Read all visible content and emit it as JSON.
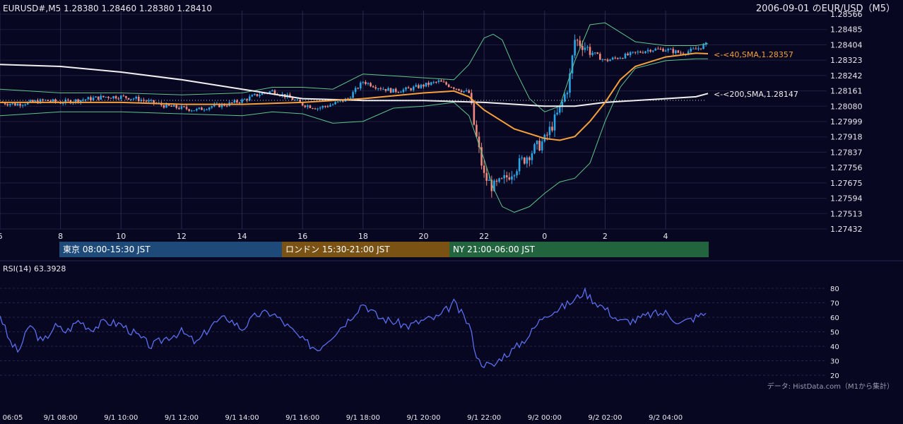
{
  "header": {
    "symbol_info": "EURUSD#,M5 1.28380 1.28460 1.28380 1.28410",
    "title_right": "2006-09-01 のEUR/USD（M5）"
  },
  "colors": {
    "background": "#070721",
    "grid": "#2a2a4a",
    "candle_up": "#2aa5e6",
    "candle_down": "#f08a7e",
    "sma40": "#f5a03c",
    "sma200": "#f0f0f0",
    "bollinger": "#5fc48a",
    "rsi": "#5a6ef0",
    "session_tokyo": "#1e4a7a",
    "session_london": "#7a5214",
    "session_ny": "#22643e"
  },
  "price_axis": {
    "ticks": [
      "1.28566",
      "1.28485",
      "1.28404",
      "1.28323",
      "1.28242",
      "1.28161",
      "1.28080",
      "1.27999",
      "1.27918",
      "1.27837",
      "1.27756",
      "1.27675",
      "1.27594",
      "1.27513",
      "1.27432"
    ]
  },
  "hour_axis": {
    "ticks": [
      "6",
      "8",
      "10",
      "12",
      "14",
      "16",
      "18",
      "20",
      "22",
      "0",
      "2",
      "4"
    ]
  },
  "indicator_labels": {
    "sma40": "<-<40,SMA,1.28357",
    "sma200": "<-<200,SMA,1.28147"
  },
  "sessions": [
    {
      "label": "東京 08:00-15:30 JST"
    },
    {
      "label": "ロンドン 15:30-21:00 JST"
    },
    {
      "label": "NY 21:00-06:00 JST"
    }
  ],
  "rsi_panel": {
    "label": "RSI(14) 63.3928",
    "ticks": [
      "80",
      "70",
      "60",
      "50",
      "40",
      "30",
      "20"
    ],
    "source_note": "データ: HistData.com（M1から集計）"
  },
  "time_axis": {
    "ticks": [
      "06:05",
      "9/1 08:00",
      "9/1 10:00",
      "9/1 12:00",
      "9/1 14:00",
      "9/1 16:00",
      "9/1 18:00",
      "9/1 20:00",
      "9/1 22:00",
      "9/2 00:00",
      "9/2 02:00",
      "9/2 04:00"
    ]
  },
  "chart_data": [
    {
      "type": "candlestick",
      "title": "EUR/USD M5",
      "ylim": [
        1.27432,
        1.28566
      ],
      "hours": [
        6,
        8,
        10,
        12,
        14,
        16,
        18,
        20,
        22,
        0,
        2,
        4
      ],
      "close_path": [
        [
          6.0,
          1.281
        ],
        [
          6.5,
          1.2809
        ],
        [
          7.0,
          1.281
        ],
        [
          7.5,
          1.2811
        ],
        [
          8.0,
          1.281
        ],
        [
          8.5,
          1.2811
        ],
        [
          9.0,
          1.2812
        ],
        [
          9.5,
          1.2813
        ],
        [
          10.0,
          1.2813
        ],
        [
          10.5,
          1.2812
        ],
        [
          11.0,
          1.281
        ],
        [
          11.5,
          1.2808
        ],
        [
          12.0,
          1.2807
        ],
        [
          12.5,
          1.2806
        ],
        [
          13.0,
          1.2808
        ],
        [
          13.5,
          1.2809
        ],
        [
          14.0,
          1.2811
        ],
        [
          14.5,
          1.2814
        ],
        [
          15.0,
          1.2816
        ],
        [
          15.5,
          1.2813
        ],
        [
          16.0,
          1.2809
        ],
        [
          16.5,
          1.2807
        ],
        [
          17.0,
          1.2809
        ],
        [
          17.5,
          1.2812
        ],
        [
          18.0,
          1.2821
        ],
        [
          18.5,
          1.2818
        ],
        [
          19.0,
          1.2816
        ],
        [
          19.5,
          1.2817
        ],
        [
          20.0,
          1.2819
        ],
        [
          20.5,
          1.2821
        ],
        [
          21.0,
          1.2818
        ],
        [
          21.5,
          1.2815
        ],
        [
          21.7,
          1.2795
        ],
        [
          22.0,
          1.2771
        ],
        [
          22.3,
          1.2765
        ],
        [
          22.6,
          1.2768
        ],
        [
          23.0,
          1.2775
        ],
        [
          23.5,
          1.2783
        ],
        [
          24.0,
          1.279
        ],
        [
          24.5,
          1.2806
        ],
        [
          24.8,
          1.282
        ],
        [
          25.0,
          1.2843
        ],
        [
          25.3,
          1.284
        ],
        [
          25.6,
          1.2836
        ],
        [
          26.0,
          1.2832
        ],
        [
          26.5,
          1.2834
        ],
        [
          27.0,
          1.2836
        ],
        [
          27.5,
          1.2838
        ],
        [
          28.0,
          1.2838
        ],
        [
          28.5,
          1.2836
        ],
        [
          29.0,
          1.2838
        ],
        [
          29.4,
          1.2841
        ]
      ],
      "sma40_path": [
        [
          6.0,
          1.281
        ],
        [
          8.0,
          1.281
        ],
        [
          10.0,
          1.281
        ],
        [
          12.0,
          1.2809
        ],
        [
          14.0,
          1.2809
        ],
        [
          16.0,
          1.281
        ],
        [
          18.0,
          1.2812
        ],
        [
          20.0,
          1.2815
        ],
        [
          21.0,
          1.2816
        ],
        [
          21.5,
          1.2813
        ],
        [
          22.0,
          1.2806
        ],
        [
          23.0,
          1.2796
        ],
        [
          24.0,
          1.2791
        ],
        [
          24.5,
          1.279
        ],
        [
          25.0,
          1.2792
        ],
        [
          25.5,
          1.28
        ],
        [
          26.0,
          1.281
        ],
        [
          26.5,
          1.2822
        ],
        [
          27.0,
          1.2829
        ],
        [
          28.0,
          1.2834
        ],
        [
          29.0,
          1.2836
        ],
        [
          29.4,
          1.28357
        ]
      ],
      "sma200_path": [
        [
          6.0,
          1.283
        ],
        [
          8.0,
          1.2829
        ],
        [
          10.0,
          1.2826
        ],
        [
          12.0,
          1.2822
        ],
        [
          14.0,
          1.2817
        ],
        [
          16.0,
          1.2812
        ],
        [
          18.0,
          1.2811
        ],
        [
          20.0,
          1.2811
        ],
        [
          22.0,
          1.281
        ],
        [
          24.0,
          1.2808
        ],
        [
          25.0,
          1.2808
        ],
        [
          26.0,
          1.281
        ],
        [
          27.0,
          1.2811
        ],
        [
          28.0,
          1.2812
        ],
        [
          29.0,
          1.2813
        ],
        [
          29.4,
          1.28147
        ]
      ],
      "bb_upper_path": [
        [
          6.0,
          1.2817
        ],
        [
          8.0,
          1.2815
        ],
        [
          10.0,
          1.2815
        ],
        [
          12.0,
          1.2814
        ],
        [
          14.0,
          1.2815
        ],
        [
          15.0,
          1.2818
        ],
        [
          16.0,
          1.2818
        ],
        [
          17.0,
          1.2817
        ],
        [
          18.0,
          1.2825
        ],
        [
          19.0,
          1.2824
        ],
        [
          20.0,
          1.2823
        ],
        [
          21.0,
          1.2822
        ],
        [
          21.5,
          1.283
        ],
        [
          22.0,
          1.2844
        ],
        [
          22.3,
          1.2846
        ],
        [
          22.6,
          1.2843
        ],
        [
          23.0,
          1.2828
        ],
        [
          23.5,
          1.2812
        ],
        [
          24.0,
          1.2805
        ],
        [
          24.5,
          1.2808
        ],
        [
          25.0,
          1.2832
        ],
        [
          25.5,
          1.2851
        ],
        [
          26.0,
          1.2852
        ],
        [
          26.5,
          1.2847
        ],
        [
          27.0,
          1.2842
        ],
        [
          28.0,
          1.284
        ],
        [
          29.0,
          1.284
        ],
        [
          29.4,
          1.2841
        ]
      ],
      "bb_lower_path": [
        [
          6.0,
          1.2803
        ],
        [
          8.0,
          1.2805
        ],
        [
          10.0,
          1.2805
        ],
        [
          12.0,
          1.2804
        ],
        [
          14.0,
          1.2803
        ],
        [
          15.0,
          1.2805
        ],
        [
          16.0,
          1.2804
        ],
        [
          17.0,
          1.2799
        ],
        [
          18.0,
          1.28
        ],
        [
          19.0,
          1.2807
        ],
        [
          20.0,
          1.2808
        ],
        [
          21.0,
          1.281
        ],
        [
          21.5,
          1.2803
        ],
        [
          22.0,
          1.278
        ],
        [
          22.3,
          1.2765
        ],
        [
          22.6,
          1.2755
        ],
        [
          23.0,
          1.2752
        ],
        [
          23.5,
          1.2755
        ],
        [
          24.0,
          1.2762
        ],
        [
          24.5,
          1.2768
        ],
        [
          25.0,
          1.277
        ],
        [
          25.5,
          1.2778
        ],
        [
          26.0,
          1.28
        ],
        [
          26.5,
          1.2818
        ],
        [
          27.0,
          1.2828
        ],
        [
          28.0,
          1.2832
        ],
        [
          29.0,
          1.2833
        ],
        [
          29.4,
          1.2833
        ]
      ]
    },
    {
      "type": "line",
      "title": "RSI(14)",
      "ylim": [
        20,
        80
      ],
      "series": [
        {
          "name": "RSI(14)",
          "values": [
            [
              6.0,
              62
            ],
            [
              6.3,
              44
            ],
            [
              6.6,
              36
            ],
            [
              7.0,
              55
            ],
            [
              7.4,
              42
            ],
            [
              7.8,
              54
            ],
            [
              8.2,
              50
            ],
            [
              8.6,
              58
            ],
            [
              9.0,
              52
            ],
            [
              9.5,
              57
            ],
            [
              10.0,
              55
            ],
            [
              10.5,
              48
            ],
            [
              11.0,
              40
            ],
            [
              11.5,
              46
            ],
            [
              12.0,
              50
            ],
            [
              12.5,
              42
            ],
            [
              13.0,
              55
            ],
            [
              13.5,
              60
            ],
            [
              14.0,
              52
            ],
            [
              14.5,
              62
            ],
            [
              15.0,
              63
            ],
            [
              15.5,
              54
            ],
            [
              16.0,
              44
            ],
            [
              16.5,
              38
            ],
            [
              17.0,
              48
            ],
            [
              17.5,
              58
            ],
            [
              18.0,
              70
            ],
            [
              18.5,
              60
            ],
            [
              19.0,
              57
            ],
            [
              19.5,
              54
            ],
            [
              20.0,
              58
            ],
            [
              20.5,
              60
            ],
            [
              21.0,
              70
            ],
            [
              21.5,
              55
            ],
            [
              21.8,
              30
            ],
            [
              22.0,
              28
            ],
            [
              22.3,
              26
            ],
            [
              22.6,
              33
            ],
            [
              23.0,
              38
            ],
            [
              23.5,
              48
            ],
            [
              24.0,
              62
            ],
            [
              24.5,
              66
            ],
            [
              25.0,
              72
            ],
            [
              25.3,
              78
            ],
            [
              25.6,
              72
            ],
            [
              26.0,
              66
            ],
            [
              26.5,
              57
            ],
            [
              27.0,
              58
            ],
            [
              27.5,
              62
            ],
            [
              28.0,
              63
            ],
            [
              28.5,
              56
            ],
            [
              29.0,
              60
            ],
            [
              29.4,
              63.3928
            ]
          ]
        }
      ]
    }
  ]
}
